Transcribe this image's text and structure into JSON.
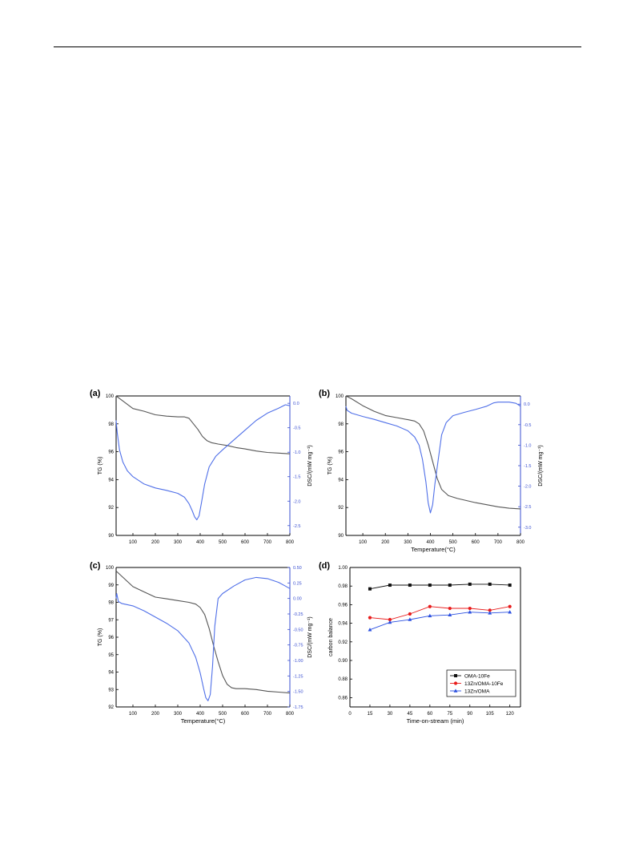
{
  "colors": {
    "tg": "#555555",
    "dsc": "#4f6fe8",
    "axis_right": "#3a4fd0",
    "oma_10fe": "#111111",
    "zn_oma_10fe": "#e81c1c",
    "zn_oma": "#2a4fe0"
  },
  "chart_data": [
    {
      "panel_label": "(a)",
      "type": "line",
      "xlabel": "",
      "ylabel": "TG (%)",
      "y2label": "DSC/(mW mg⁻¹)",
      "xlim": [
        25,
        800
      ],
      "xticks": [
        100,
        200,
        300,
        400,
        500,
        600,
        700,
        800
      ],
      "ylim": [
        90,
        100
      ],
      "yticks": [
        90,
        92,
        94,
        96,
        98,
        100
      ],
      "y2lim": [
        -2.7,
        0.15
      ],
      "y2ticks": [
        0.0,
        -0.5,
        -1.0,
        -1.5,
        -2.0,
        -2.5
      ],
      "y2tick_labels": [
        "0.0",
        "-0.5",
        "-1.0",
        "-1.5",
        "-2.0",
        "-2.5"
      ],
      "series": [
        {
          "axis": "left",
          "x": [
            25,
            50,
            100,
            150,
            200,
            250,
            300,
            330,
            350,
            370,
            390,
            410,
            430,
            450,
            480,
            520,
            560,
            600,
            650,
            700,
            750,
            800
          ],
          "y": [
            100,
            99.7,
            99.1,
            98.9,
            98.65,
            98.55,
            98.5,
            98.5,
            98.4,
            98.0,
            97.6,
            97.1,
            96.8,
            96.65,
            96.55,
            96.45,
            96.3,
            96.2,
            96.05,
            95.95,
            95.9,
            95.85
          ]
        },
        {
          "axis": "right",
          "x": [
            25,
            30,
            40,
            55,
            75,
            100,
            150,
            200,
            250,
            300,
            330,
            350,
            365,
            375,
            385,
            395,
            405,
            420,
            440,
            470,
            500,
            550,
            600,
            650,
            700,
            750,
            780,
            800
          ],
          "y": [
            -0.35,
            -0.6,
            -0.95,
            -1.2,
            -1.38,
            -1.5,
            -1.65,
            -1.73,
            -1.78,
            -1.84,
            -1.92,
            -2.05,
            -2.2,
            -2.32,
            -2.38,
            -2.3,
            -2.05,
            -1.65,
            -1.3,
            -1.08,
            -0.95,
            -0.75,
            -0.55,
            -0.35,
            -0.2,
            -0.1,
            -0.03,
            -0.05
          ]
        }
      ]
    },
    {
      "panel_label": "(b)",
      "type": "line",
      "xlabel": "Temperature(°C)",
      "ylabel": "TG (%)",
      "y2label": "DSC/(mW mg⁻¹)",
      "xlim": [
        25,
        800
      ],
      "xticks": [
        100,
        200,
        300,
        400,
        500,
        600,
        700,
        800
      ],
      "ylim": [
        90,
        100
      ],
      "yticks": [
        90,
        92,
        94,
        96,
        98,
        100
      ],
      "y2lim": [
        -3.2,
        0.2
      ],
      "y2ticks": [
        0.0,
        -0.5,
        -1.0,
        -1.5,
        -2.0,
        -2.5,
        -3.0
      ],
      "y2tick_labels": [
        "0.0",
        "-0.5",
        "-1.0",
        "-1.5",
        "-2.0",
        "-2.5",
        "-3.0"
      ],
      "series": [
        {
          "axis": "left",
          "x": [
            25,
            50,
            100,
            150,
            200,
            250,
            300,
            330,
            350,
            370,
            390,
            410,
            430,
            450,
            480,
            520,
            560,
            600,
            650,
            700,
            750,
            800
          ],
          "y": [
            100,
            99.8,
            99.3,
            98.9,
            98.6,
            98.45,
            98.3,
            98.2,
            98.0,
            97.5,
            96.5,
            95.3,
            94.1,
            93.3,
            92.85,
            92.65,
            92.5,
            92.35,
            92.2,
            92.05,
            91.95,
            91.9
          ]
        },
        {
          "axis": "right",
          "x": [
            25,
            30,
            50,
            100,
            150,
            200,
            250,
            300,
            330,
            350,
            365,
            380,
            390,
            400,
            410,
            420,
            435,
            450,
            470,
            500,
            550,
            600,
            650,
            680,
            700,
            750,
            780,
            800
          ],
          "y": [
            -0.05,
            -0.15,
            -0.22,
            -0.3,
            -0.37,
            -0.45,
            -0.53,
            -0.65,
            -0.8,
            -1.0,
            -1.35,
            -1.9,
            -2.4,
            -2.65,
            -2.45,
            -1.95,
            -1.35,
            -0.75,
            -0.45,
            -0.28,
            -0.2,
            -0.13,
            -0.05,
            0.03,
            0.05,
            0.05,
            0.02,
            -0.05
          ]
        }
      ]
    },
    {
      "panel_label": "(c)",
      "type": "line",
      "xlabel": "Temperature(°C)",
      "ylabel": "TG (%)",
      "y2label": "DSC/(mW mg⁻¹)",
      "xlim": [
        25,
        800
      ],
      "xticks": [
        100,
        200,
        300,
        400,
        500,
        600,
        700,
        800
      ],
      "ylim": [
        92,
        100
      ],
      "yticks": [
        92,
        93,
        94,
        95,
        96,
        97,
        98,
        99,
        100
      ],
      "y2lim": [
        -1.75,
        0.5
      ],
      "y2ticks": [
        0.5,
        0.25,
        0.0,
        -0.25,
        -0.5,
        -0.75,
        -1.0,
        -1.25,
        -1.5,
        -1.75
      ],
      "y2tick_labels": [
        "0.50",
        "0.25",
        "0.00",
        "-0.25",
        "-0.50",
        "-0.75",
        "-1.00",
        "-1.25",
        "-1.50",
        "-1.75"
      ],
      "series": [
        {
          "axis": "left",
          "x": [
            25,
            50,
            100,
            150,
            200,
            250,
            300,
            350,
            380,
            400,
            420,
            440,
            460,
            480,
            500,
            520,
            540,
            560,
            600,
            650,
            700,
            750,
            800
          ],
          "y": [
            99.8,
            99.5,
            98.9,
            98.6,
            98.3,
            98.2,
            98.1,
            98.0,
            97.9,
            97.7,
            97.3,
            96.5,
            95.5,
            94.6,
            93.8,
            93.3,
            93.1,
            93.05,
            93.05,
            93.0,
            92.9,
            92.85,
            92.8
          ]
        },
        {
          "axis": "right",
          "x": [
            25,
            28,
            35,
            50,
            100,
            150,
            200,
            250,
            300,
            350,
            380,
            400,
            415,
            425,
            435,
            445,
            455,
            465,
            480,
            500,
            550,
            600,
            650,
            700,
            750,
            780,
            800
          ],
          "y": [
            0.0,
            0.08,
            -0.05,
            -0.08,
            -0.12,
            -0.2,
            -0.3,
            -0.4,
            -0.52,
            -0.72,
            -0.95,
            -1.2,
            -1.45,
            -1.6,
            -1.65,
            -1.55,
            -1.1,
            -0.45,
            0.0,
            0.08,
            0.2,
            0.3,
            0.34,
            0.32,
            0.26,
            0.2,
            0.16
          ]
        }
      ]
    },
    {
      "panel_label": "(d)",
      "type": "line",
      "xlabel": "Time-on-stream (min)",
      "ylabel": "carbon balance",
      "xlim": [
        0,
        128
      ],
      "xticks": [
        0,
        15,
        30,
        45,
        60,
        75,
        90,
        105,
        120
      ],
      "ylim": [
        0.85,
        1.0
      ],
      "yticks": [
        0.86,
        0.88,
        0.9,
        0.92,
        0.94,
        0.96,
        0.98,
        1.0
      ],
      "ytick_labels": [
        "0.86",
        "0.88",
        "0.90",
        "0.92",
        "0.94",
        "0.96",
        "0.98",
        "1.00"
      ],
      "legend_position": "bottom-right",
      "series": [
        {
          "name": "OMA-10Fe",
          "marker": "square",
          "x": [
            15,
            30,
            45,
            60,
            75,
            90,
            105,
            120
          ],
          "y": [
            0.977,
            0.981,
            0.981,
            0.981,
            0.981,
            0.982,
            0.982,
            0.981
          ]
        },
        {
          "name": "13Zn/OMA-10Fe",
          "marker": "circle",
          "x": [
            15,
            30,
            45,
            60,
            75,
            90,
            105,
            120
          ],
          "y": [
            0.946,
            0.944,
            0.95,
            0.958,
            0.956,
            0.956,
            0.954,
            0.958
          ]
        },
        {
          "name": "13Zn/OMA",
          "marker": "triangle",
          "x": [
            15,
            30,
            45,
            60,
            75,
            90,
            105,
            120
          ],
          "y": [
            0.933,
            0.941,
            0.944,
            0.948,
            0.949,
            0.952,
            0.951,
            0.952
          ]
        }
      ]
    }
  ]
}
